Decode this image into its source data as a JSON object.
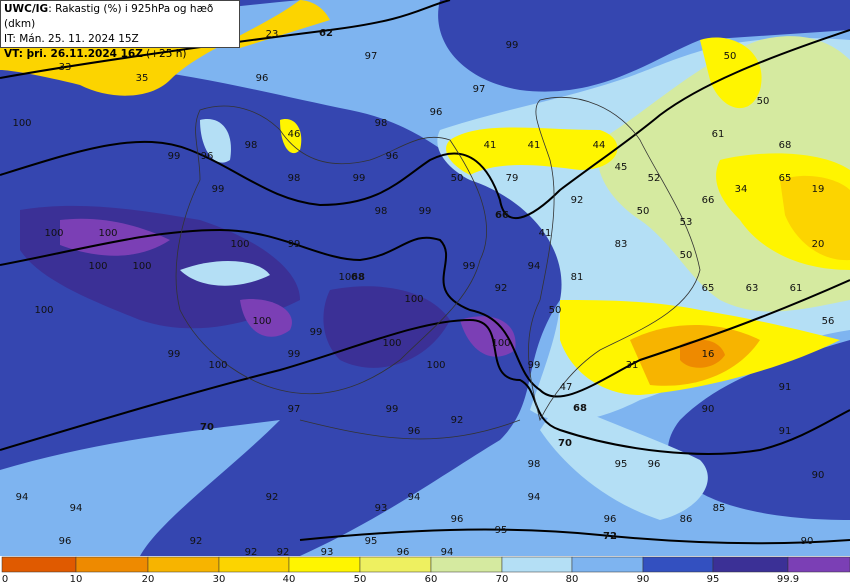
{
  "header": {
    "title_bold": "UWC/IG",
    "title_rest": ": Rakastig (%) i 925hPa og hæð (dkm)",
    "issued": "IT: Mán. 25. 11. 2024 15Z",
    "valid_bold": "VT: þri. 26.11.2024 16Z",
    "valid_rest": "(+25 h)"
  },
  "map_values": [
    23,
    33,
    35,
    97,
    99,
    50,
    96,
    97,
    50,
    100,
    98,
    96,
    46,
    61,
    99,
    96,
    98,
    41,
    41,
    44,
    68,
    98,
    96,
    45,
    52,
    50,
    79,
    65,
    99,
    34,
    19,
    99,
    98,
    99,
    92,
    50,
    66,
    53,
    100,
    100,
    41,
    83,
    20,
    100,
    99,
    50,
    100,
    100,
    99,
    94,
    81,
    100,
    65,
    63,
    61,
    92,
    100,
    100,
    50,
    56,
    100,
    99,
    100,
    100,
    99,
    99,
    100,
    100,
    16,
    31,
    99,
    47,
    91,
    97,
    99,
    90,
    96,
    92,
    91,
    98,
    95,
    96,
    90,
    94,
    92,
    94,
    94,
    94,
    93,
    85,
    96,
    96,
    86,
    95,
    96,
    92,
    95,
    96,
    94,
    92,
    92,
    93,
    90
  ],
  "contour_labels": [
    62,
    66,
    68,
    70,
    68,
    70,
    72
  ],
  "colorbar": {
    "ticks": [
      0,
      10,
      20,
      30,
      40,
      50,
      60,
      70,
      80,
      90,
      95,
      99.9
    ],
    "colors": [
      "#e05a00",
      "#ee8a00",
      "#f7b400",
      "#fcd400",
      "#fff500",
      "#eef060",
      "#d5eaa0",
      "#b4dff5",
      "#7eb4f0",
      "#3350c0",
      "#3b3096",
      "#7b3fb5"
    ]
  }
}
